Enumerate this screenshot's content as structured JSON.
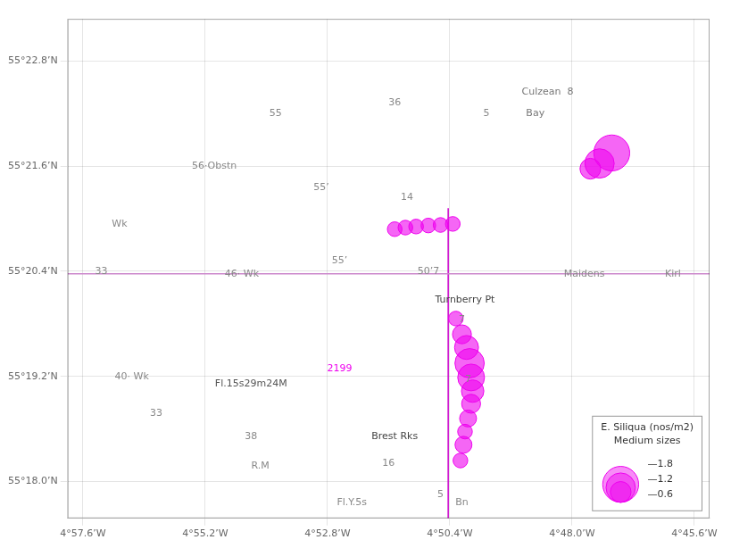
{
  "chart_data": {
    "type": "bubble",
    "xlim": [
      -4.965,
      -4.755
    ],
    "ylim": [
      55.293,
      55.388
    ],
    "xticks": [
      {
        "value": -4.96,
        "label": "4°57.6’W"
      },
      {
        "value": -4.92,
        "label": "4°55.2’W"
      },
      {
        "value": -4.88,
        "label": "4°52.8’W"
      },
      {
        "value": -4.84,
        "label": "4°50.4’W"
      },
      {
        "value": -4.8,
        "label": "4°48.0’W"
      },
      {
        "value": -4.76,
        "label": "4°45.6’W"
      }
    ],
    "yticks": [
      {
        "value": 55.3,
        "label": "55°18.0’N"
      },
      {
        "value": 55.32,
        "label": "55°19.2’N"
      },
      {
        "value": 55.34,
        "label": "55°20.4’N"
      },
      {
        "value": 55.36,
        "label": "55°21.6’N"
      },
      {
        "value": 55.38,
        "label": "55°22.8’N"
      }
    ],
    "grid": true,
    "legend": "lower right",
    "series": [
      {
        "color": "#ee00ee",
        "x": [
          -4.787,
          -4.791,
          -4.794,
          -4.839,
          -4.843,
          -4.847,
          -4.851,
          -4.8545,
          -4.858
        ],
        "y": [
          55.3625,
          55.3605,
          55.3595,
          55.349,
          55.3488,
          55.3487,
          55.3485,
          55.3483,
          55.348
        ],
        "size": [
          1.8,
          1.2,
          0.6,
          0.3,
          0.3,
          0.3,
          0.3,
          0.3,
          0.3
        ]
      },
      {
        "color": "#ee00ee",
        "x": [
          -4.838,
          -4.836,
          -4.8345,
          -4.8335,
          -4.833,
          -4.8325,
          -4.833,
          -4.834,
          -4.835,
          -4.8355,
          -4.8365
        ],
        "y": [
          55.331,
          55.328,
          55.3255,
          55.3225,
          55.3198,
          55.3172,
          55.3148,
          55.312,
          55.3095,
          55.307,
          55.304
        ],
        "size": [
          0.3,
          0.5,
          0.8,
          1.2,
          1.0,
          0.7,
          0.5,
          0.4,
          0.3,
          0.4,
          0.3
        ]
      }
    ],
    "lines": [
      {
        "color": "#cc88cc",
        "y": 55.3395
      },
      {
        "color": "#cc00cc",
        "x": -4.8405,
        "y": [
          55.293,
          55.352
        ]
      }
    ],
    "size_legend": {
      "title": [
        "E. Siliqua (nos/m2)",
        "Medium sizes"
      ],
      "sizes": [
        1.8,
        1.2,
        0.6
      ],
      "labels": [
        "—1.8",
        "—1.2",
        "—0.6"
      ]
    },
    "annotations": [
      {
        "text": "2199",
        "x": -4.876,
        "y": 55.3215,
        "color": "#ee00ee"
      },
      {
        "text": "Fl.15s29m24M",
        "x": -4.905,
        "y": 55.3185,
        "color": "#555555"
      },
      {
        "text": "Brest Rks",
        "x": -4.858,
        "y": 55.3085,
        "color": "#444444"
      },
      {
        "text": "Turnberry Pt",
        "x": -4.835,
        "y": 55.3345,
        "color": "#444444"
      },
      {
        "text": "Culzean  8",
        "x": -4.808,
        "y": 55.374,
        "color": "#777777"
      },
      {
        "text": "Bay",
        "x": -4.812,
        "y": 55.37,
        "color": "#777777"
      },
      {
        "text": "Maidens",
        "x": -4.796,
        "y": 55.3395,
        "color": "#888888"
      },
      {
        "text": "Kirl",
        "x": -4.767,
        "y": 55.3395,
        "color": "#888888"
      },
      {
        "text": "56·Obstn",
        "x": -4.917,
        "y": 55.36,
        "color": "#888888"
      },
      {
        "text": "33",
        "x": -4.954,
        "y": 55.34,
        "color": "#888888"
      },
      {
        "text": "Wk",
        "x": -4.948,
        "y": 55.349,
        "color": "#888888"
      },
      {
        "text": "40· Wk",
        "x": -4.944,
        "y": 55.32,
        "color": "#888888"
      },
      {
        "text": "33",
        "x": -4.936,
        "y": 55.313,
        "color": "#888888"
      },
      {
        "text": "38",
        "x": -4.905,
        "y": 55.3085,
        "color": "#888888"
      },
      {
        "text": "55",
        "x": -4.897,
        "y": 55.37,
        "color": "#888888"
      },
      {
        "text": "55’",
        "x": -4.882,
        "y": 55.356,
        "color": "#888888"
      },
      {
        "text": "55’",
        "x": -4.876,
        "y": 55.342,
        "color": "#888888"
      },
      {
        "text": "36",
        "x": -4.858,
        "y": 55.372,
        "color": "#888888"
      },
      {
        "text": "14",
        "x": -4.854,
        "y": 55.354,
        "color": "#888888"
      },
      {
        "text": "50’7",
        "x": -4.847,
        "y": 55.34,
        "color": "#888888"
      },
      {
        "text": "7",
        "x": -4.836,
        "y": 55.333,
        "color": "#888888"
      },
      {
        "text": "7",
        "x": -4.834,
        "y": 55.3195,
        "color": "#888888"
      },
      {
        "text": "16",
        "x": -4.86,
        "y": 55.3035,
        "color": "#888888"
      },
      {
        "text": "5",
        "x": -4.843,
        "y": 55.2975,
        "color": "#888888"
      },
      {
        "text": "5",
        "x": -4.828,
        "y": 55.37,
        "color": "#888888"
      },
      {
        "text": "Fl.Y.5s",
        "x": -4.872,
        "y": 55.296,
        "color": "#888888"
      },
      {
        "text": "Bn",
        "x": -4.836,
        "y": 55.296,
        "color": "#888888"
      },
      {
        "text": "46· Wk",
        "x": -4.908,
        "y": 55.3395,
        "color": "#888888"
      },
      {
        "text": "R.M",
        "x": -4.902,
        "y": 55.303,
        "color": "#888888"
      }
    ]
  }
}
